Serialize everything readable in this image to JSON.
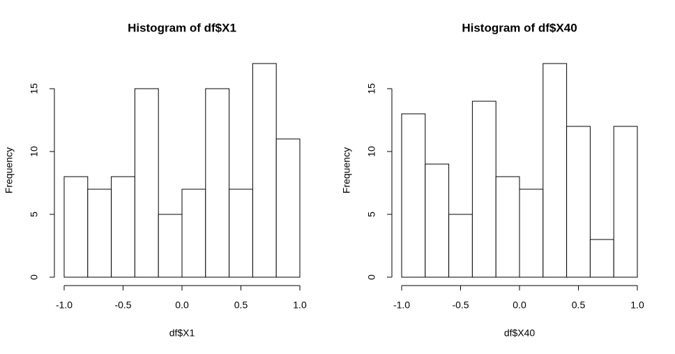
{
  "chart_data": [
    {
      "type": "histogram",
      "title": "Histogram of df$X1",
      "x_label": "df$X1",
      "y_label": "Frequency",
      "bins": [
        -1.0,
        -0.8,
        -0.6,
        -0.4,
        -0.2,
        0.0,
        0.2,
        0.4,
        0.6,
        0.8,
        1.0
      ],
      "values": [
        8,
        7,
        8,
        15,
        5,
        7,
        15,
        7,
        17,
        11
      ],
      "color": "#ffffff",
      "xlim": [
        -1,
        1
      ],
      "xticks": [
        {
          "value": -1,
          "label": "-1.0"
        },
        -0.5,
        {
          "value": 0,
          "label": "0.0"
        },
        0.5,
        {
          "value": 1,
          "label": "1.0"
        }
      ],
      "ylim": [
        0,
        17
      ],
      "yticks": [
        0,
        5,
        10,
        15
      ]
    },
    {
      "type": "histogram",
      "title": "Histogram of df$X40",
      "x_label": "df$X40",
      "y_label": "Frequency",
      "bins": [
        -1.0,
        -0.8,
        -0.6,
        -0.4,
        -0.2,
        0.0,
        0.2,
        0.4,
        0.6,
        0.8,
        1.0
      ],
      "values": [
        13,
        9,
        5,
        14,
        8,
        7,
        17,
        12,
        3,
        12
      ],
      "color": "#ffffff",
      "xlim": [
        -1,
        1
      ],
      "xticks": [
        {
          "value": -1,
          "label": "-1.0"
        },
        -0.5,
        {
          "value": 0,
          "label": "0.0"
        },
        0.5,
        {
          "value": 1,
          "label": "1.0"
        }
      ],
      "ylim": [
        0,
        17
      ],
      "yticks": [
        0,
        5,
        10,
        15
      ]
    }
  ]
}
